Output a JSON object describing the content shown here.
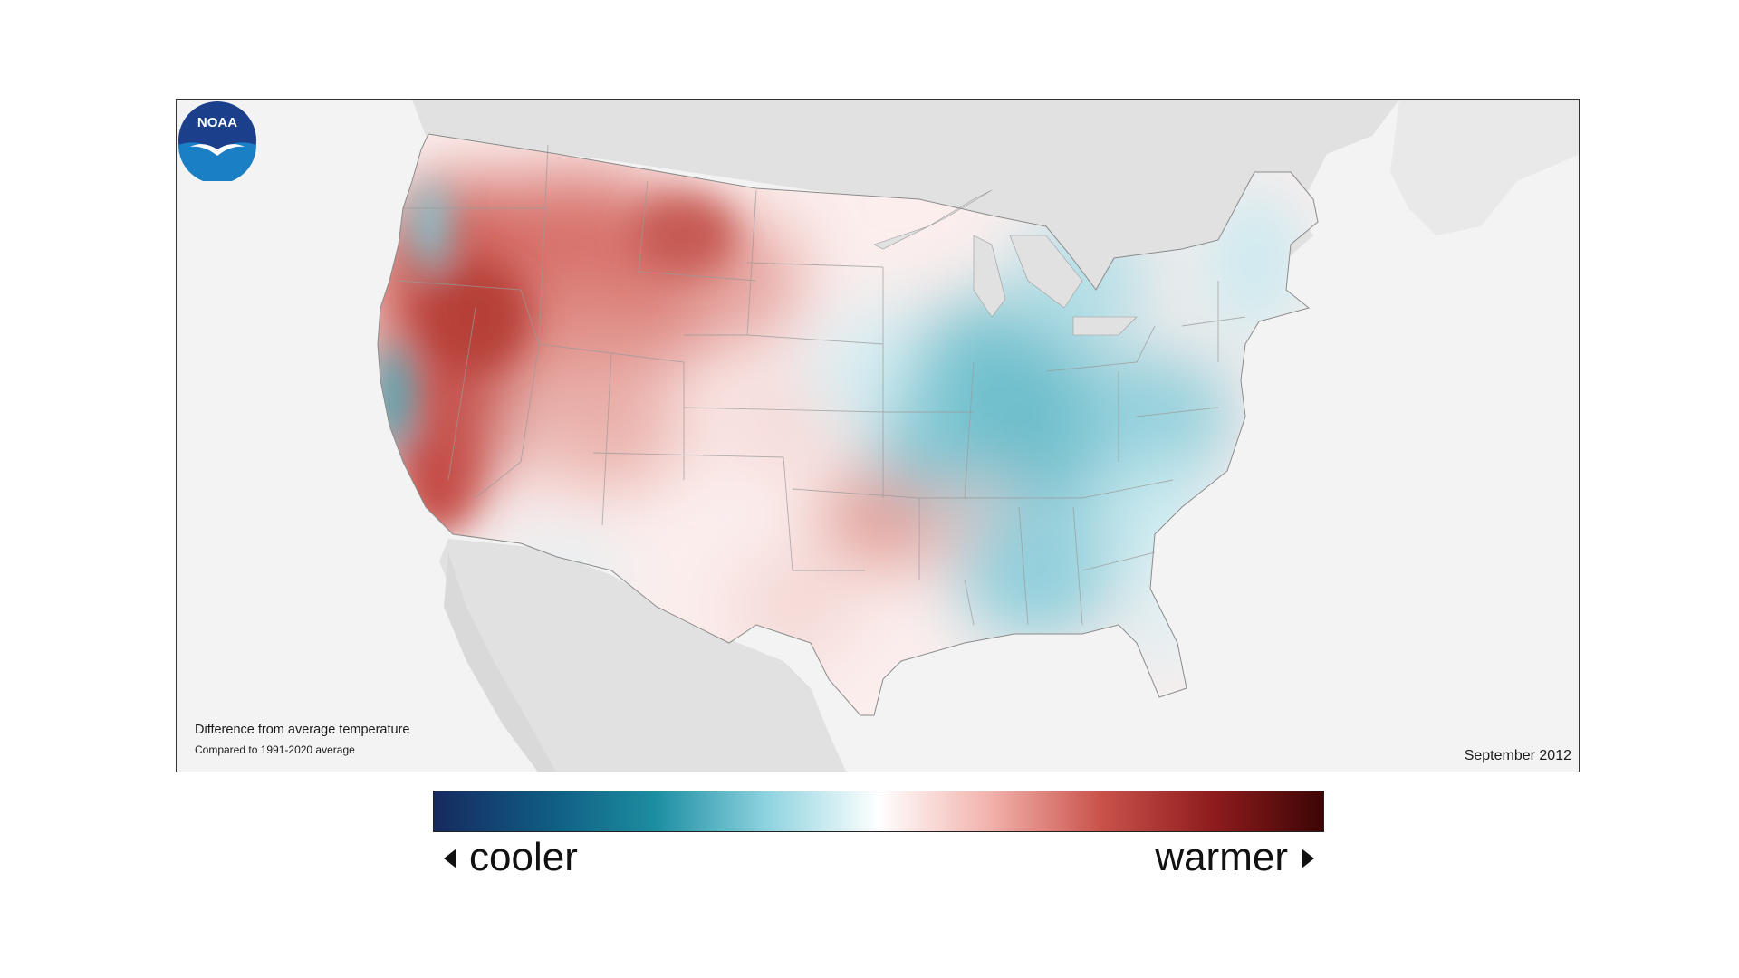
{
  "map": {
    "caption_title": "Difference from average temperature",
    "caption_subtitle": "Compared to 1991-2020 average",
    "date": "September 2012",
    "logo_text": "NOAA"
  },
  "legend": {
    "low_label": "cooler",
    "high_label": "warmer",
    "colors": [
      "#162a60",
      "#0f5a80",
      "#1d8ea2",
      "#8fd3e0",
      "#ffffff",
      "#f2b2ac",
      "#c9534b",
      "#8f1c1e",
      "#3d0505"
    ]
  },
  "colors": {
    "warm": "#c9534b",
    "cool": "#2ea3b5",
    "land_outside": "#e1e1e1",
    "ocean": "#f3f3f3"
  }
}
